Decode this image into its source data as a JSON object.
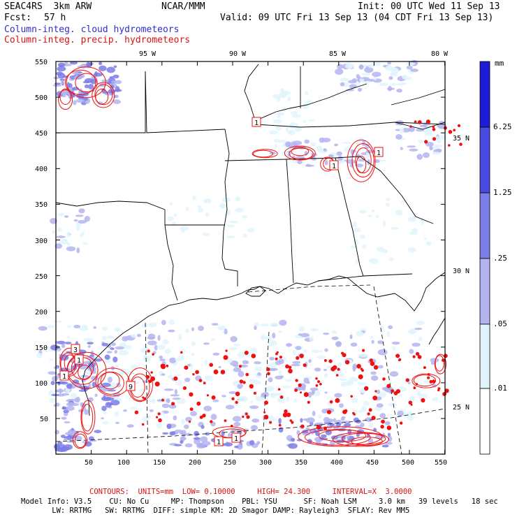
{
  "header": {
    "model": "SEAC4RS  3km ARW",
    "org": "NCAR/MMM",
    "init": "Init: 00 UTC Wed 11 Sep 13",
    "fcst_label": "Fcst:",
    "fcst_value": "57 h",
    "valid": "Valid: 09 UTC Fri 13 Sep 13 (04 CDT Fri 13 Sep 13)",
    "field1": "Column-integ. cloud hydrometeors",
    "field2": "Column-integ. precip. hydrometeors",
    "field1_color": "#2e2ecc",
    "field2_color": "#dd1111"
  },
  "map": {
    "lon_labels": [
      "95 W",
      "90 W",
      "85 W",
      "80 W"
    ],
    "lat_labels": [
      "35 N",
      "30 N",
      "25 N"
    ],
    "y_ticks": [
      "550",
      "500",
      "450",
      "400",
      "350",
      "300",
      "250",
      "200",
      "150",
      "100",
      "50"
    ],
    "x_ticks": [
      "50",
      "100",
      "150",
      "200",
      "250",
      "300",
      "350",
      "400",
      "450",
      "500",
      "550"
    ],
    "contour_labels": [
      "1",
      "1",
      "1",
      "1",
      "3",
      "1",
      "9",
      "1",
      "1"
    ],
    "contour_color": "#ee1111"
  },
  "colorbar": {
    "unit": "mm",
    "levels": [
      "6.25",
      "1.25",
      ".25",
      ".05",
      ".01"
    ],
    "colors": [
      "#1d1dd8",
      "#4a4ae0",
      "#7d7de8",
      "#b4b4f0",
      "#e0f4fc",
      "#ffffff"
    ]
  },
  "footer": {
    "contours": "CONTOURS:  UNITS=mm  LOW= 0.10000     HIGH= 24.300     INTERVAL=X  3.0000",
    "info1": "Model Info: V3.5    CU: No Cu     MP: Thompson    PBL: YSU      SF: Noah LSM     3.0 km   39 levels   18 sec",
    "info2": "       LW: RRTMG   SW: RRTMG  DIFF: simple KM: 2D Smagor DAMP: Rayleigh3  SFLAY: Rev MM5"
  }
}
